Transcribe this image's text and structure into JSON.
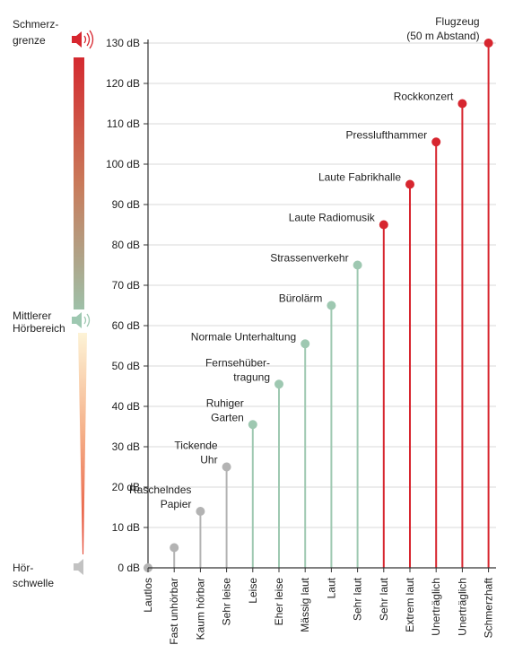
{
  "chart_data": {
    "type": "lollipop",
    "ylim": [
      0,
      130
    ],
    "yticks": [
      0,
      10,
      20,
      30,
      40,
      50,
      60,
      70,
      80,
      90,
      100,
      110,
      120,
      130
    ],
    "yunit": "dB",
    "grid": true,
    "categories": [
      "Lautlos",
      "Fast unhörbar",
      "Kaum hörbar",
      "Sehr leise",
      "Leise",
      "Eher leise",
      "Mässig laut",
      "Laut",
      "Sehr laut",
      "Sehr laut",
      "Extrem laut",
      "Unerträglich",
      "Unerträglich",
      "Schmerzhaft"
    ],
    "values": [
      0,
      5,
      14,
      25,
      35.5,
      45.5,
      55.5,
      65,
      75,
      85,
      95,
      105.5,
      115,
      130
    ],
    "examples": [
      [],
      [],
      [
        "Raschelndes",
        "Papier"
      ],
      [
        "Tickende",
        "Uhr"
      ],
      [
        "Ruhiger",
        "Garten"
      ],
      [
        "Fernsehüber-",
        "tragung"
      ],
      [
        "Normale Unterhaltung"
      ],
      [
        "Bürolärm"
      ],
      [
        "Strassenverkehr"
      ],
      [
        "Laute Radiomusik"
      ],
      [
        "Laute Fabrikhalle"
      ],
      [
        "Presslufthammer"
      ],
      [
        "Rockkonzert"
      ],
      [
        "Flugzeug",
        "(50 m Abstand)"
      ]
    ],
    "level_colors": [
      "grey",
      "grey",
      "grey",
      "grey",
      "green",
      "green",
      "green",
      "green",
      "green",
      "red",
      "red",
      "red",
      "red",
      "red"
    ],
    "colors": {
      "grey": "#b3b3b3",
      "green": "#9ec8b1",
      "red": "#d7262f",
      "axis": "#333333",
      "grid": "#d9d9d9",
      "text": "#222222"
    },
    "scale_labels": {
      "top": [
        "Schmerz-",
        "grenze"
      ],
      "middle": [
        "Mittlerer",
        "Hörbereich"
      ],
      "bottom": [
        "Hör-",
        "schwelle"
      ]
    },
    "scale_icons": [
      "speaker-loud-icon",
      "speaker-medium-icon",
      "speaker-quiet-icon"
    ],
    "scale_gradient": [
      "#d42a30",
      "#c97a5a",
      "#9ec0a8",
      "#fdf3d6",
      "#f5b089",
      "#e4432e"
    ]
  }
}
